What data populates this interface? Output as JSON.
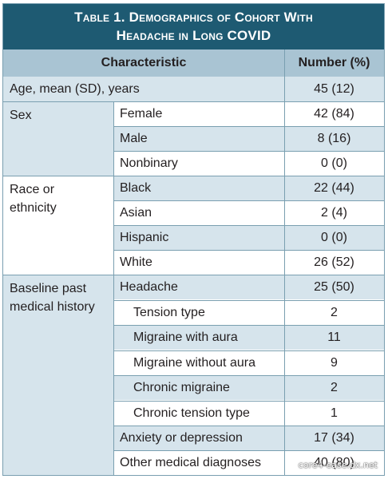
{
  "table": {
    "title_lead": "Table 1.",
    "title_rest": "Demographics of Cohort With",
    "title_line2": "Headache in Long COVID",
    "col_characteristic": "Characteristic",
    "col_number": "Number (%)",
    "age": {
      "label": "Age, mean (SD), years",
      "value": "45 (12)"
    },
    "sex": {
      "group": "Sex",
      "rows": [
        {
          "label": "Female",
          "value": "42 (84)"
        },
        {
          "label": "Male",
          "value": "8 (16)"
        },
        {
          "label": "Nonbinary",
          "value": "0 (0)"
        }
      ]
    },
    "race": {
      "group_line1": "Race or",
      "group_line2": "ethnicity",
      "rows": [
        {
          "label": "Black",
          "value": "22 (44)"
        },
        {
          "label": "Asian",
          "value": "2 (4)"
        },
        {
          "label": "Hispanic",
          "value": "0 (0)"
        },
        {
          "label": "White",
          "value": "26 (52)"
        }
      ]
    },
    "history": {
      "group_line1": "Baseline past",
      "group_line2": "medical history",
      "rows": [
        {
          "label": "Headache",
          "value": "25 (50)"
        },
        {
          "label": "Tension type",
          "value": "2"
        },
        {
          "label": "Migraine with aura",
          "value": "11"
        },
        {
          "label": "Migraine without aura",
          "value": "9"
        },
        {
          "label": "Chronic migraine",
          "value": "2"
        },
        {
          "label": "Chronic tension type",
          "value": "1"
        },
        {
          "label": "Anxiety or depression",
          "value": "17 (34)"
        },
        {
          "label": "Other medical diagnoses",
          "value": "40 (80)"
        }
      ]
    }
  },
  "watermark": "core4-ease.dx.net"
}
